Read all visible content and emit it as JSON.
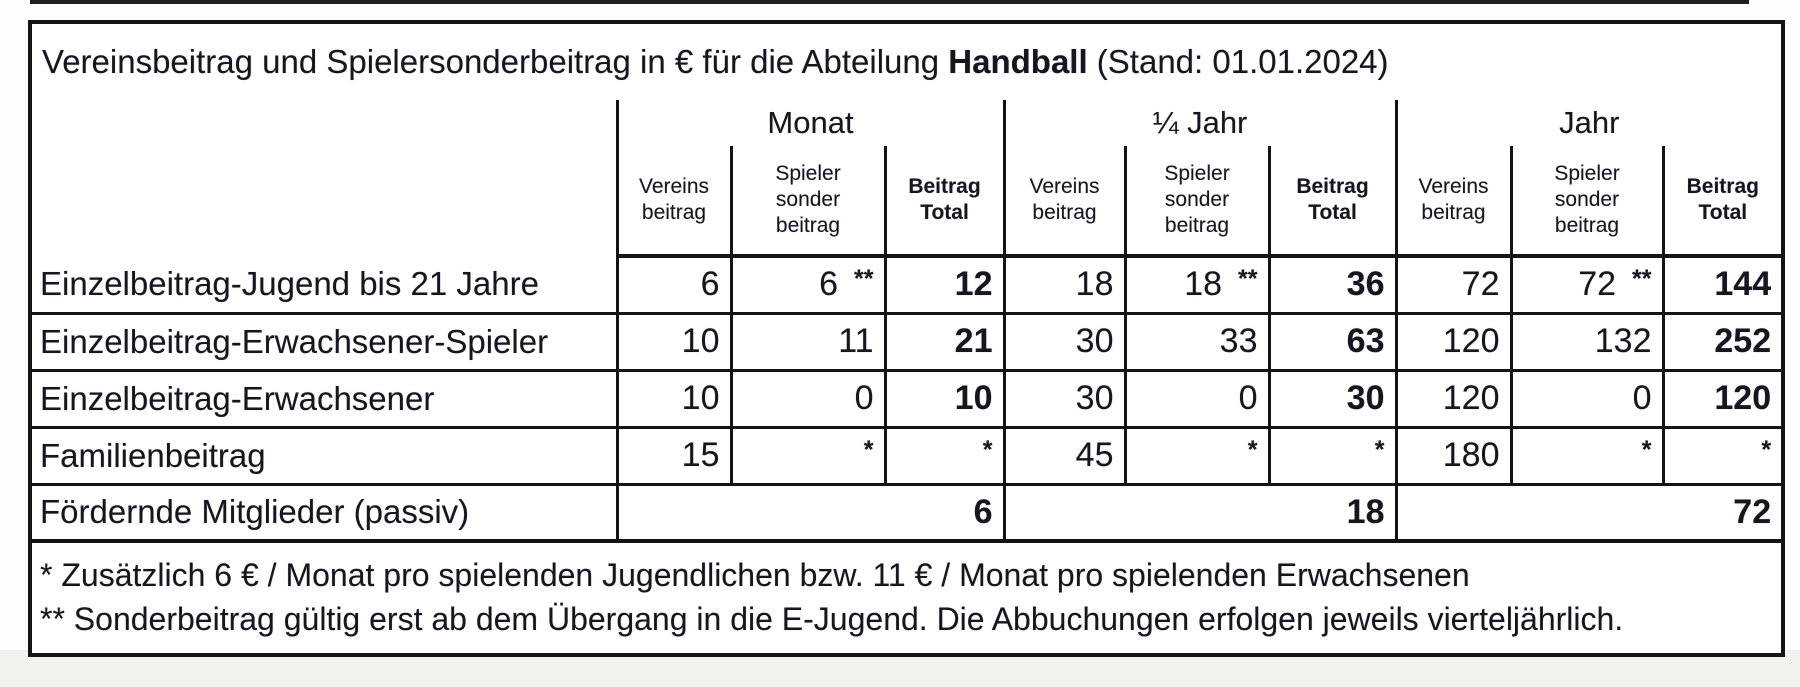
{
  "title": {
    "prefix": "Vereinsbeitrag und Spielersonderbeitrag in € für die Abteilung ",
    "bold": "Handball",
    "suffix": " (Stand: 01.01.2024)"
  },
  "header": {
    "groups": [
      {
        "label": "Monat"
      },
      {
        "label": "¼ Jahr"
      },
      {
        "label": "Jahr"
      }
    ],
    "subcolumns": [
      "Vereins\nbeitrag",
      "Spieler\nsonder\nbeitrag",
      "Beitrag\nTotal"
    ],
    "subcolumn_names": [
      "subheader-vereinsbeitrag",
      "subheader-spielersonderbeitrag",
      "subheader-beitrag-total"
    ]
  },
  "rows": [
    {
      "label": "Einzelbeitrag-Jugend bis 21 Jahre",
      "cells": [
        {
          "v": "6"
        },
        {
          "v": "6",
          "note": "**"
        },
        {
          "v": "12",
          "bold": true
        },
        {
          "v": "18"
        },
        {
          "v": "18",
          "note": "**"
        },
        {
          "v": "36",
          "bold": true
        },
        {
          "v": "72"
        },
        {
          "v": "72",
          "note": "**"
        },
        {
          "v": "144",
          "bold": true
        }
      ]
    },
    {
      "label": "Einzelbeitrag-Erwachsener-Spieler",
      "cells": [
        {
          "v": "10"
        },
        {
          "v": "11"
        },
        {
          "v": "21",
          "bold": true
        },
        {
          "v": "30"
        },
        {
          "v": "33"
        },
        {
          "v": "63",
          "bold": true
        },
        {
          "v": "120"
        },
        {
          "v": "132"
        },
        {
          "v": "252",
          "bold": true
        }
      ]
    },
    {
      "label": "Einzelbeitrag-Erwachsener",
      "cells": [
        {
          "v": "10"
        },
        {
          "v": "0"
        },
        {
          "v": "10",
          "bold": true
        },
        {
          "v": "30"
        },
        {
          "v": "0"
        },
        {
          "v": "30",
          "bold": true
        },
        {
          "v": "120"
        },
        {
          "v": "0"
        },
        {
          "v": "120",
          "bold": true
        }
      ]
    },
    {
      "label": "Familienbeitrag",
      "cells": [
        {
          "v": "15"
        },
        {
          "note": "*"
        },
        {
          "note": "*"
        },
        {
          "v": "45"
        },
        {
          "note": "*"
        },
        {
          "note": "*"
        },
        {
          "v": "180"
        },
        {
          "note": "*"
        },
        {
          "note": "*"
        }
      ]
    },
    {
      "label": "Fördernde Mitglieder (passiv)",
      "merged": true,
      "cells": [
        {
          "v": "6",
          "bold": true
        },
        {
          "v": "18",
          "bold": true
        },
        {
          "v": "72",
          "bold": true
        }
      ]
    }
  ],
  "footnotes": [
    "* Zusätzlich 6 € / Monat pro spielenden Jugendlichen bzw. 11 € / Monat pro spielenden Erwachsenen",
    "** Sonderbeitrag gültig erst ab dem Übergang in die E-Jugend. Die Abbuchungen erfolgen jeweils vierteljährlich."
  ],
  "colors": {
    "line": "#141414",
    "text": "#16161f",
    "paper": "#ffffff"
  }
}
